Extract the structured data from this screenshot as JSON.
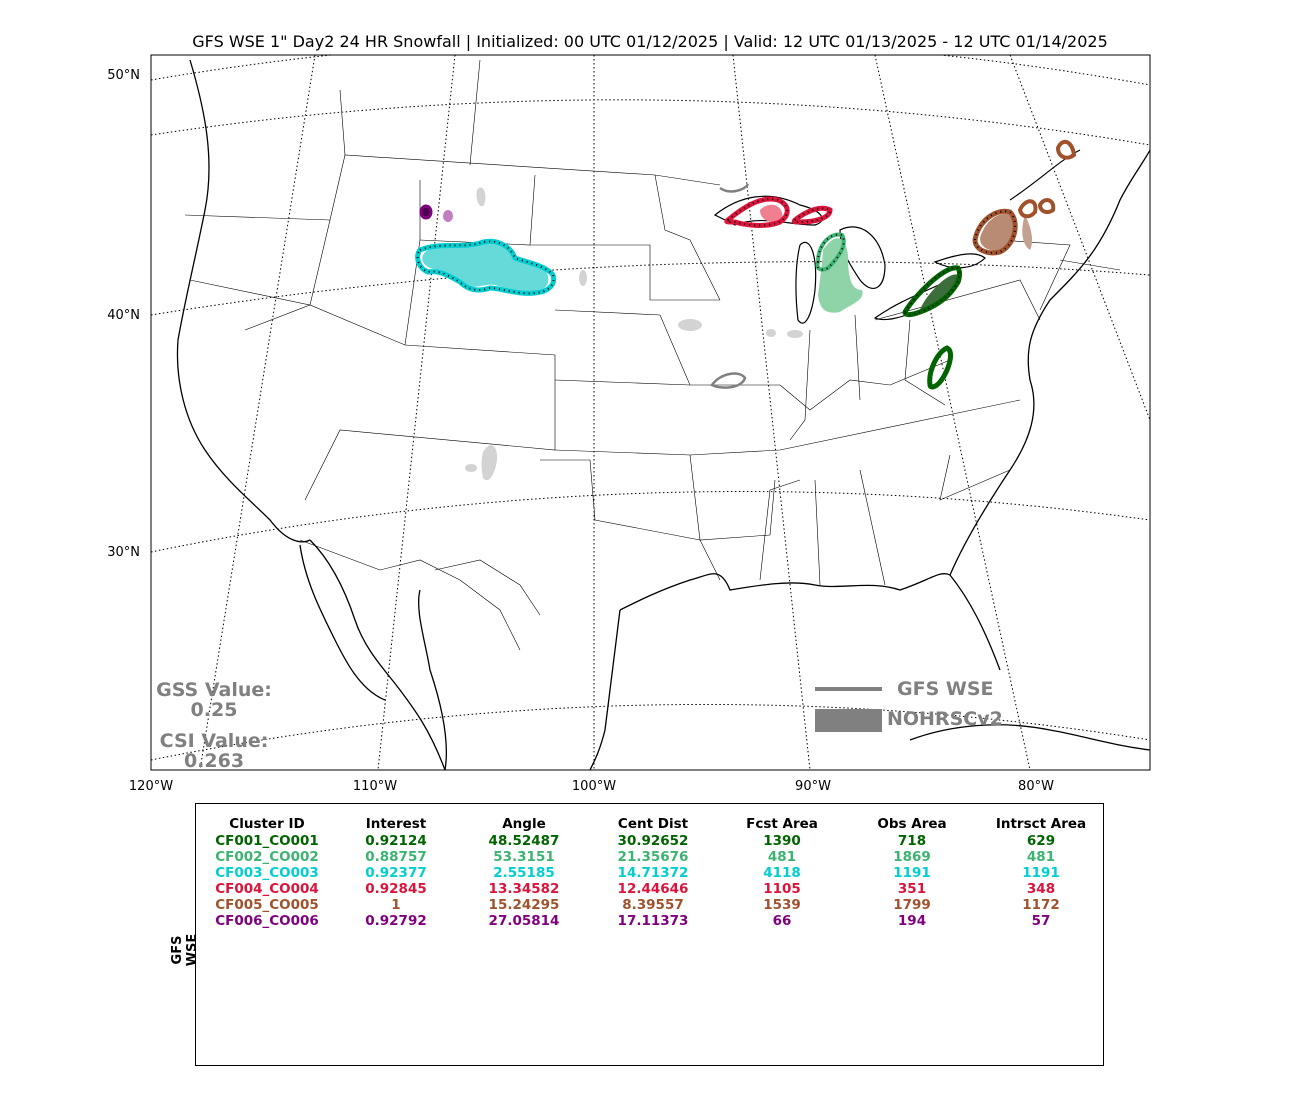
{
  "title": "GFS WSE 1\" Day2 24 HR Snowfall | Initialized: 00 UTC 01/12/2025 | Valid: 12 UTC 01/13/2025 - 12 UTC 01/14/2025",
  "lat_labels": [
    "50°N",
    "40°N",
    "30°N"
  ],
  "lon_labels": [
    "120°W",
    "110°W",
    "100°W",
    "90°W",
    "80°W"
  ],
  "scores": {
    "gss_label": "GSS Value:",
    "gss_value": "0.25",
    "csi_label": "CSI Value:",
    "csi_value": "0.263"
  },
  "legend": {
    "forecast_label": "GFS WSE",
    "observed_label": "NOHRSCv2"
  },
  "table": {
    "side_label": "GFS WSE",
    "headers": [
      "Cluster ID",
      "Interest",
      "Angle",
      "Cent Dist",
      "Fcst Area",
      "Obs Area",
      "Intrsct Area"
    ],
    "rows": [
      {
        "color": "#006400",
        "cells": [
          "CF001_CO001",
          "0.92124",
          "48.52487",
          "30.92652",
          "1390",
          "718",
          "629"
        ]
      },
      {
        "color": "#3cb371",
        "cells": [
          "CF002_CO002",
          "0.88757",
          "53.3151",
          "21.35676",
          "481",
          "1869",
          "481"
        ]
      },
      {
        "color": "#00ced1",
        "cells": [
          "CF003_CO003",
          "0.92377",
          "2.55185",
          "14.71372",
          "4118",
          "1191",
          "1191"
        ]
      },
      {
        "color": "#dc143c",
        "cells": [
          "CF004_CO004",
          "0.92845",
          "13.34582",
          "12.44646",
          "1105",
          "351",
          "348"
        ]
      },
      {
        "color": "#a0522d",
        "cells": [
          "CF005_CO005",
          "1",
          "15.24295",
          "8.39557",
          "1539",
          "1799",
          "1172"
        ]
      },
      {
        "color": "#800080",
        "cells": [
          "CF006_CO006",
          "0.92792",
          "27.05814",
          "17.11373",
          "66",
          "194",
          "57"
        ]
      }
    ]
  },
  "colors": {
    "legend_gray": "#808080",
    "unmatched_gray": "#d3d3d3"
  }
}
